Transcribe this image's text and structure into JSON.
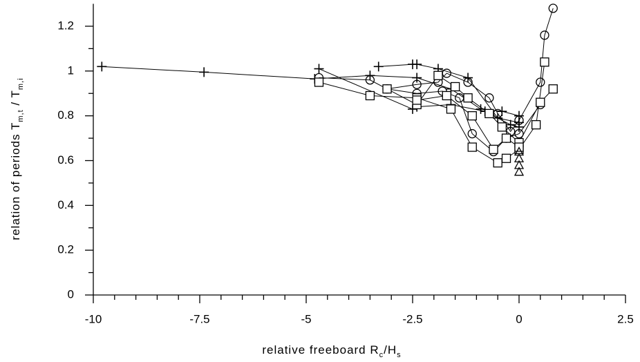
{
  "chart_data": {
    "type": "scatter",
    "xlabel": [
      "relative freeboard R",
      "c",
      "/H",
      "s"
    ],
    "ylabel": [
      "relation of periods T",
      "m,t",
      " / T",
      "m,i"
    ],
    "xlim": [
      -10,
      2.5
    ],
    "ylim": [
      0,
      1.3
    ],
    "xticks": [
      -10,
      -7.5,
      -5,
      -2.5,
      0,
      2.5
    ],
    "yticks": [
      0,
      0.2,
      0.4,
      0.6,
      0.8,
      1,
      1.2
    ],
    "xminorticks": [
      -9.5,
      -9,
      -8.5,
      -8,
      -7,
      -6.5,
      -6,
      -5.5,
      -4.5,
      -4,
      -3.5,
      -3,
      -2,
      -1.5,
      -1,
      -0.5,
      0.5,
      1,
      1.5,
      2
    ],
    "yminorticks": [
      0.1,
      0.3,
      0.5,
      0.7,
      0.9,
      1.1
    ],
    "color": "#000000",
    "series": [
      {
        "marker": "plus",
        "line": true,
        "x": [
          -9.8,
          -7.4,
          -4.8,
          -3.5,
          -2.4,
          -1.6,
          -0.9,
          -0.4,
          0
        ],
        "values": [
          1.02,
          0.995,
          0.965,
          0.98,
          0.97,
          0.92,
          0.83,
          0.82,
          0.8
        ]
      },
      {
        "marker": "plus",
        "line": true,
        "x": [
          -3.3,
          -2.5,
          -2.4,
          -1.9,
          -1.2,
          -0.5,
          0
        ],
        "values": [
          1.02,
          1.03,
          1.03,
          1.01,
          0.97,
          0.79,
          0.77
        ]
      },
      {
        "marker": "plus",
        "line": true,
        "x": [
          -4.7,
          -2.5,
          -2.4,
          -1.6,
          -0.8,
          -0.2,
          0
        ],
        "values": [
          1.01,
          0.83,
          0.84,
          0.85,
          0.82,
          0.76,
          0.75
        ]
      },
      {
        "marker": "circle",
        "line": true,
        "x": [
          -4.7,
          -3.5,
          -3.1,
          -2.4,
          -1.9,
          -1.7,
          -1.2,
          -0.7,
          -0.5,
          -0.2,
          0,
          0.5,
          0.6,
          0.8
        ],
        "values": [
          0.97,
          0.96,
          0.92,
          0.94,
          0.95,
          0.99,
          0.95,
          0.88,
          0.81,
          0.73,
          0.78,
          0.95,
          1.16,
          1.28
        ]
      },
      {
        "marker": "circle",
        "line": true,
        "x": [
          -3.1,
          -2.4,
          -1.8,
          -1.4,
          -1.1,
          -0.6,
          -0.3,
          0,
          0.5
        ],
        "values": [
          0.92,
          0.9,
          0.91,
          0.88,
          0.72,
          0.64,
          0.7,
          0.72,
          0.85
        ]
      },
      {
        "marker": "square",
        "line": true,
        "x": [
          -4.7,
          -3.5,
          -2.4,
          -1.6,
          -1.1,
          -0.5,
          -0.3,
          0,
          0.4,
          0.6
        ],
        "values": [
          0.95,
          0.89,
          0.88,
          0.83,
          0.66,
          0.59,
          0.61,
          0.65,
          0.76,
          1.04
        ]
      },
      {
        "marker": "square",
        "line": true,
        "x": [
          -3.1,
          -2.4,
          -1.9,
          -1.5,
          -1.2,
          -0.7,
          -0.4,
          0,
          0.5,
          0.8
        ],
        "values": [
          0.92,
          0.85,
          0.98,
          0.93,
          0.88,
          0.81,
          0.75,
          0.68,
          0.86,
          0.92
        ]
      },
      {
        "marker": "square",
        "line": true,
        "x": [
          -2.4,
          -1.7,
          -1.1,
          -0.6,
          -0.3,
          0
        ],
        "values": [
          0.87,
          0.89,
          0.8,
          0.65,
          0.7,
          0.66
        ]
      },
      {
        "marker": "triangle",
        "line": false,
        "x": [
          0,
          0,
          0,
          0
        ],
        "values": [
          0.55,
          0.58,
          0.61,
          0.64
        ]
      }
    ]
  }
}
